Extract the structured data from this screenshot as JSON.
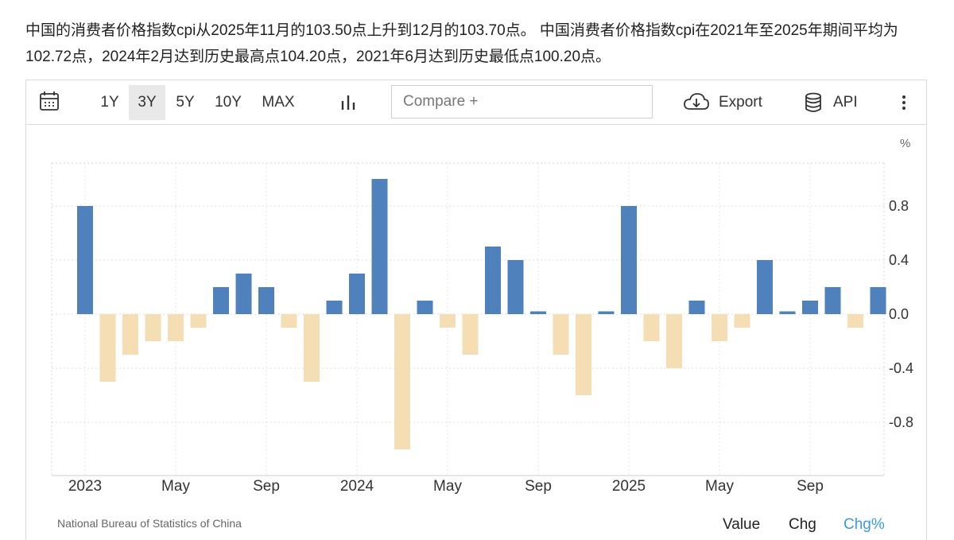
{
  "headline": "中国的消费者价格指数cpi从2025年11月的103.50点上升到12月的103.70点。 中国消费者价格指数cpi在2021年至2025年期间平均为102.72点，2024年2月达到历史最高点104.20点，2021年6月达到历史最低点100.20点。",
  "toolbar": {
    "calendar_icon": "calendar-icon",
    "ranges": [
      "1Y",
      "3Y",
      "5Y",
      "10Y",
      "MAX"
    ],
    "active_range": "3Y",
    "chart_type_icon": "bar-chart-icon",
    "compare_placeholder": "Compare +",
    "export_label": "Export",
    "export_icon": "cloud-download-icon",
    "api_label": "API",
    "api_icon": "database-icon",
    "more_icon": "more-vertical-icon"
  },
  "footer": {
    "source": "National Bureau of Statistics of China",
    "modes": [
      "Value",
      "Chg",
      "Chg%"
    ],
    "active_mode": "Chg%"
  },
  "chart_data": {
    "type": "bar",
    "unit": "%",
    "categories": [
      "2023-01",
      "2023-02",
      "2023-03",
      "2023-04",
      "2023-05",
      "2023-06",
      "2023-07",
      "2023-08",
      "2023-09",
      "2023-10",
      "2023-11",
      "2023-12",
      "2024-01",
      "2024-02",
      "2024-03",
      "2024-04",
      "2024-05",
      "2024-06",
      "2024-07",
      "2024-08",
      "2024-09",
      "2024-10",
      "2024-11",
      "2024-12",
      "2025-01",
      "2025-02",
      "2025-03",
      "2025-04",
      "2025-05",
      "2025-06",
      "2025-07",
      "2025-08",
      "2025-09",
      "2025-10",
      "2025-11",
      "2025-12"
    ],
    "values": [
      0.8,
      -0.5,
      -0.3,
      -0.2,
      -0.2,
      -0.1,
      0.2,
      0.3,
      0.2,
      -0.1,
      -0.5,
      0.1,
      0.3,
      1.0,
      -1.0,
      0.1,
      -0.1,
      -0.3,
      0.5,
      0.4,
      0.0,
      -0.3,
      -0.6,
      0.0,
      0.8,
      -0.2,
      -0.4,
      0.1,
      -0.2,
      -0.1,
      0.4,
      0.0,
      0.1,
      0.2,
      -0.1,
      0.2
    ],
    "x_tick_labels": [
      {
        "index": 0,
        "label": "2023"
      },
      {
        "index": 4,
        "label": "May"
      },
      {
        "index": 8,
        "label": "Sep"
      },
      {
        "index": 12,
        "label": "2024"
      },
      {
        "index": 16,
        "label": "May"
      },
      {
        "index": 20,
        "label": "Sep"
      },
      {
        "index": 24,
        "label": "2025"
      },
      {
        "index": 28,
        "label": "May"
      },
      {
        "index": 32,
        "label": "Sep"
      }
    ],
    "y_ticks": [
      0.8,
      0.4,
      0.0,
      -0.4,
      -0.8
    ],
    "y_tick_labels": [
      "0.8",
      "0.4",
      "0.0",
      "-0.4",
      "-0.8"
    ],
    "ylim": [
      -1.1,
      1.1
    ],
    "colors": {
      "positive": "#4f81bd",
      "negative": "#f5deb3"
    },
    "grid": true
  }
}
